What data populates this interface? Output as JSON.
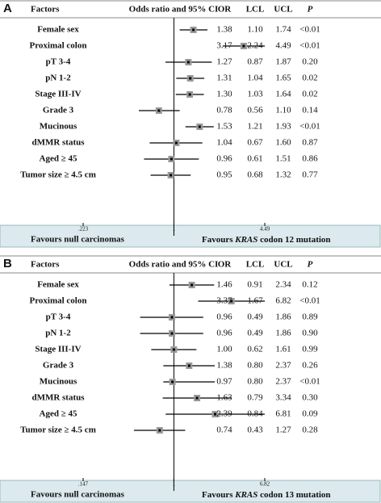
{
  "chart_data": [
    {
      "type": "forest",
      "panel_label": "A",
      "category_label": "Factors",
      "x_label": "Odds ratio and 95% CI",
      "categories": [
        "Female sex",
        "Proximal colon",
        "pT 3-4",
        "pN 1-2",
        "Stage III-IV",
        "Grade 3",
        "Mucinous",
        "dMMR status",
        "Aged ≥ 45",
        "Tumor size ≥ 4.5 cm"
      ],
      "series": [
        {
          "name": "OR",
          "color": "#999999",
          "values": [
            1.38,
            3.17,
            1.27,
            1.31,
            1.3,
            0.78,
            1.53,
            1.04,
            0.96,
            0.95
          ],
          "value_labels": [
            "1.38",
            "3.17",
            "1.27",
            "1.31",
            "1.30",
            "0.78",
            "1.53",
            "1.04",
            "0.96",
            "0.95"
          ]
        },
        {
          "name": "LCL",
          "color": "#000000",
          "values": [
            1.1,
            2.24,
            0.87,
            1.04,
            1.03,
            0.56,
            1.21,
            0.67,
            0.61,
            0.68
          ],
          "value_labels": [
            "1.10",
            "2.24",
            "0.87",
            "1.04",
            "1.03",
            "0.56",
            "1.21",
            "0.67",
            "0.61",
            "0.68"
          ]
        },
        {
          "name": "UCL",
          "color": "#000000",
          "values": [
            1.74,
            4.49,
            1.87,
            1.65,
            1.64,
            1.1,
            1.93,
            1.6,
            1.51,
            1.32
          ],
          "value_labels": [
            "1.74",
            "4.49",
            "1.87",
            "1.65",
            "1.64",
            "1.10",
            "1.93",
            "1.60",
            "1.51",
            "1.32"
          ]
        }
      ],
      "p": {
        "name": "P",
        "labels": [
          "<0.01",
          "<0.01",
          "0.20",
          "0.02",
          "0.02",
          "0.14",
          "<0.01",
          "0.87",
          "0.86",
          "0.77"
        ]
      },
      "log_scale": true,
      "xlim": [
        0.223,
        4.49
      ],
      "xticks": [
        {
          "value": 0.223,
          "label": ".223"
        },
        1,
        4.49
      ],
      "favours_left": "Favours null carcinomas",
      "favours_right": [
        "Favours ",
        "KRAS",
        " codon 12 mutation"
      ]
    },
    {
      "type": "forest",
      "panel_label": "B",
      "category_label": "Factors",
      "x_label": "Odds ratio and 95% CI",
      "categories": [
        "Female sex",
        "Proximal colon",
        "pT 3-4",
        "pN 1-2",
        "Stage III-IV",
        "Grade 3",
        "Mucinous",
        "dMMR status",
        "Aged ≥ 45",
        "Tumor size ≥ 4.5 cm"
      ],
      "series": [
        {
          "name": "OR",
          "color": "#999999",
          "values": [
            1.46,
            3.37,
            0.96,
            0.96,
            1.0,
            1.38,
            0.97,
            1.63,
            2.39,
            0.74
          ],
          "value_labels": [
            "1.46",
            "3.37",
            "0.96",
            "0.96",
            "1.00",
            "1.38",
            "0.97",
            "1.63",
            "2.39",
            "0.74"
          ]
        },
        {
          "name": "LCL",
          "color": "#000000",
          "values": [
            0.91,
            1.67,
            0.49,
            0.49,
            0.62,
            0.8,
            0.8,
            0.79,
            0.84,
            0.43
          ],
          "value_labels": [
            "0.91",
            "1.67",
            "0.49",
            "0.49",
            "0.62",
            "0.80",
            "0.80",
            "0.79",
            "0.84",
            "0.43"
          ]
        },
        {
          "name": "UCL",
          "color": "#000000",
          "values": [
            2.34,
            6.82,
            1.86,
            1.86,
            1.61,
            2.37,
            2.37,
            3.34,
            6.81,
            1.27
          ],
          "value_labels": [
            "2.34",
            "6.82",
            "1.86",
            "1.86",
            "1.61",
            "2.37",
            "2.37",
            "3.34",
            "6.81",
            "1.27"
          ]
        }
      ],
      "p": {
        "name": "P",
        "labels": [
          "0.12",
          "<0.01",
          "0.89",
          "0.90",
          "0.99",
          "0.26",
          "<0.01",
          "0.30",
          "0.09",
          "0.28"
        ]
      },
      "log_scale": true,
      "xlim": [
        0.147,
        6.82
      ],
      "xticks": [
        {
          "value": 0.147,
          "label": ".147"
        },
        1,
        6.82
      ],
      "favours_left": "Favours null carcinomas",
      "favours_right": [
        "Favours ",
        "KRAS",
        " codon 13 mutation"
      ]
    }
  ]
}
